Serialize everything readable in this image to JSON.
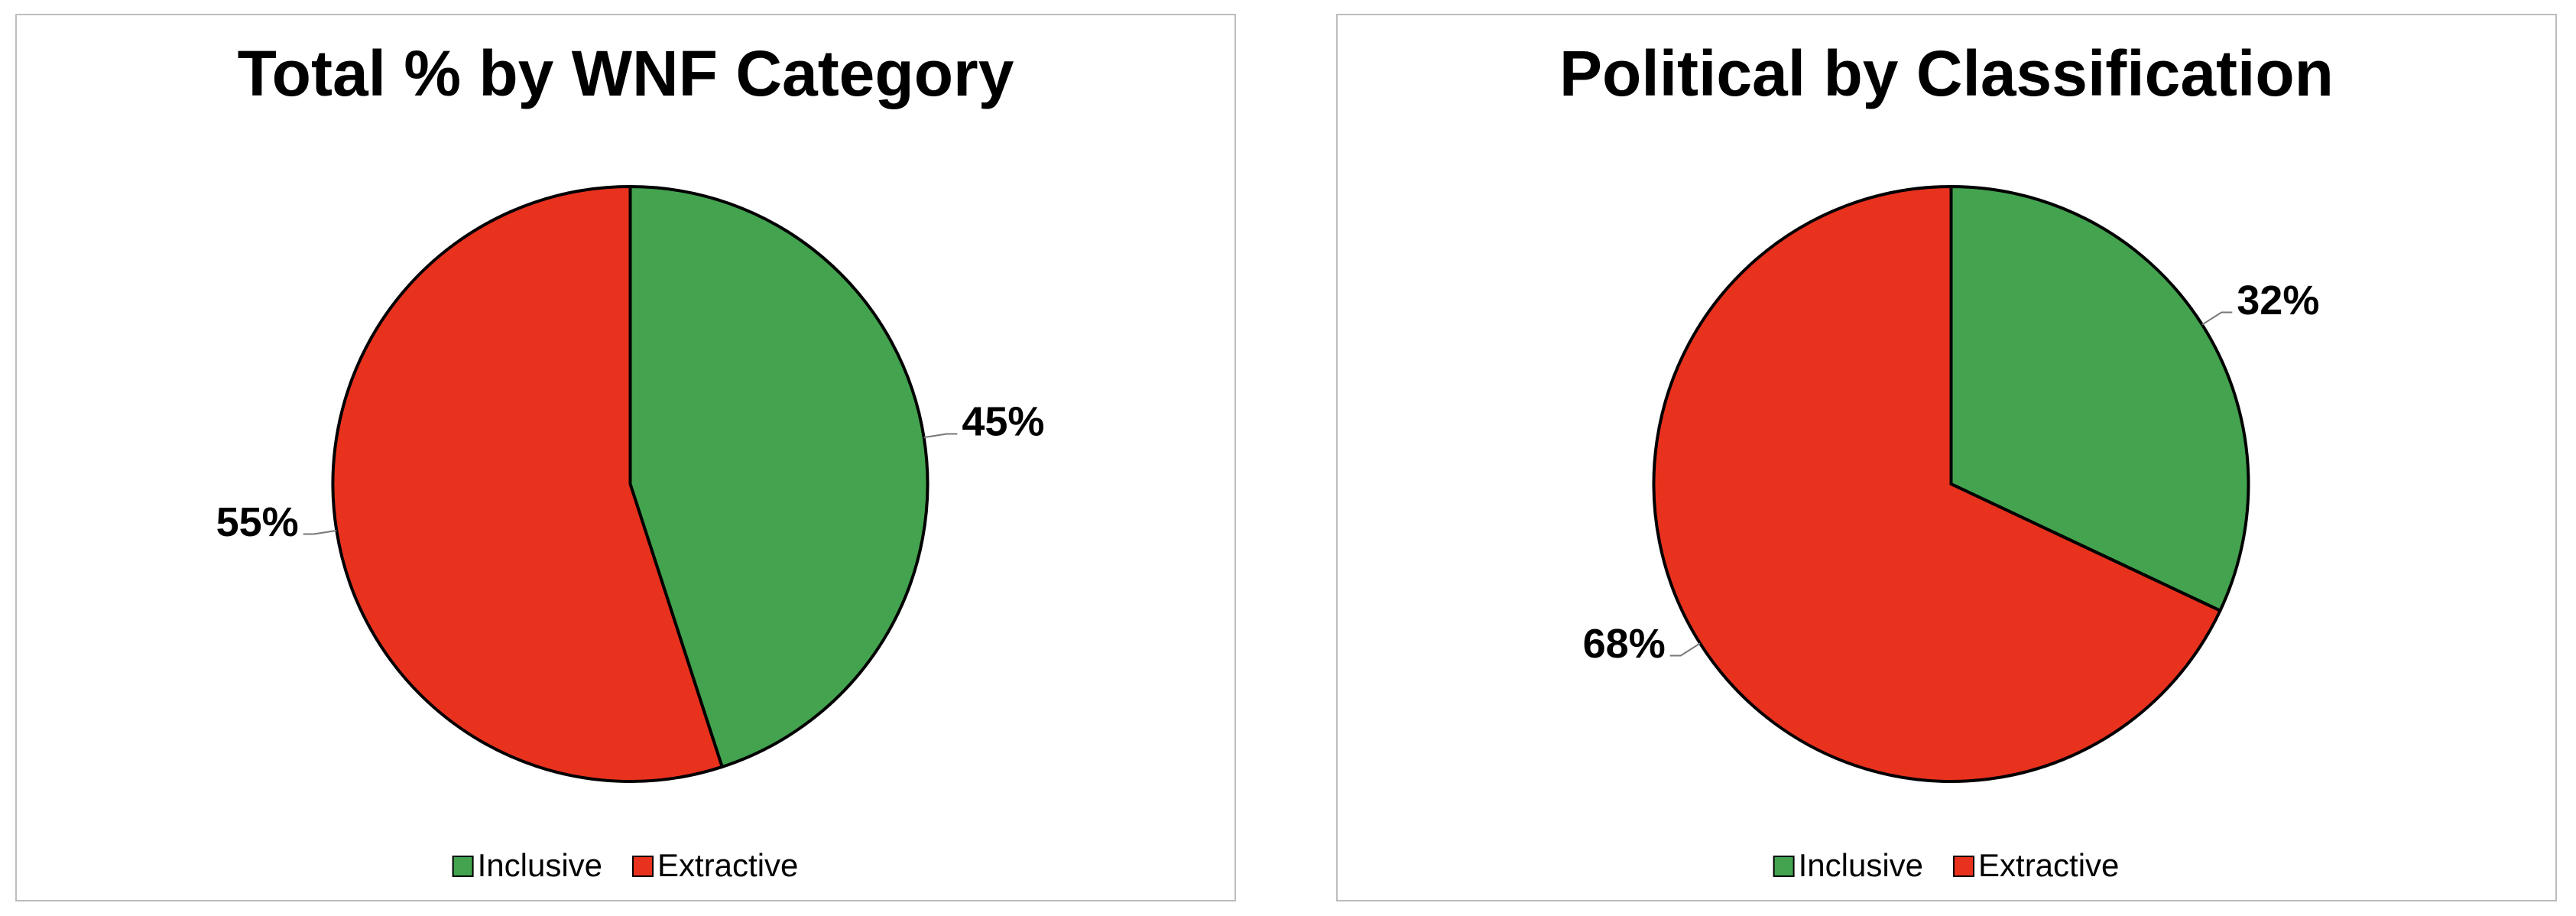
{
  "chart_data": [
    {
      "type": "pie",
      "title": "Total % by WNF Category",
      "categories": [
        "Inclusive",
        "Extractive"
      ],
      "values": [
        45,
        55
      ],
      "value_labels": [
        "45%",
        "55%"
      ],
      "colors": [
        "#43a34f",
        "#e8321e"
      ],
      "legend": "bottom"
    },
    {
      "type": "pie",
      "title": "Political by Classification",
      "categories": [
        "Inclusive",
        "Extractive"
      ],
      "values": [
        32,
        68
      ],
      "value_labels": [
        "32%",
        "68%"
      ],
      "colors": [
        "#43a34f",
        "#e8321e"
      ],
      "legend": "bottom"
    }
  ]
}
